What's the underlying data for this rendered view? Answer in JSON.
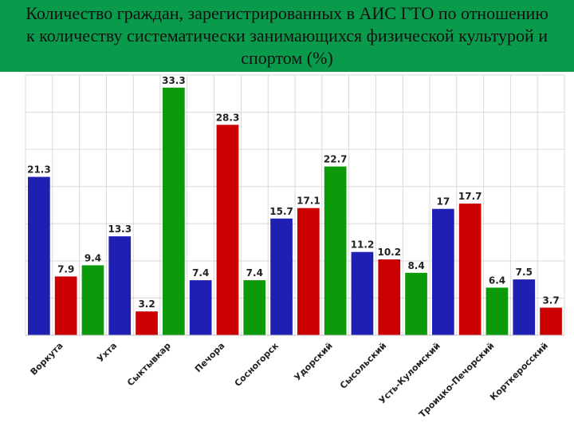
{
  "title": "Количество граждан, зарегистрированных в АИС ГТО по отношению к количеству систематически занимающихся физической культурой и спортом (%)",
  "colors": {
    "blue": "#1f1fb4",
    "red": "#cc0000",
    "green": "#0a9a0a",
    "header": "#0a9a4b",
    "grid": "#d9d9d9"
  },
  "chart_data": {
    "type": "bar",
    "title": "Количество граждан, зарегистрированных в АИС ГТО по отношению к количеству систематически занимающихся физической культурой и спортом (%)",
    "xlabel": "",
    "ylabel": "",
    "ylim": [
      0,
      35
    ],
    "grid": true,
    "categories": [
      "Воркута",
      "Ухта",
      "Сыктывкар",
      "Печора",
      "Сосногорск",
      "Удорский",
      "Сысольский",
      "Усть-Куломский",
      "Троицко-Печорский",
      "Корткеросский"
    ],
    "bars": [
      {
        "value": 21.3,
        "label": "21.3",
        "color": "blue"
      },
      {
        "value": 7.9,
        "label": "7.9",
        "color": "red"
      },
      {
        "value": 9.4,
        "label": "9.4",
        "color": "green"
      },
      {
        "value": 13.3,
        "label": "13.3",
        "color": "blue"
      },
      {
        "value": 3.2,
        "label": "3.2",
        "color": "red"
      },
      {
        "value": 33.3,
        "label": "33.3",
        "color": "green"
      },
      {
        "value": 7.4,
        "label": "7.4",
        "color": "blue"
      },
      {
        "value": 28.3,
        "label": "28.3",
        "color": "red"
      },
      {
        "value": 7.4,
        "label": "7.4",
        "color": "green"
      },
      {
        "value": 15.7,
        "label": "15.7",
        "color": "blue"
      },
      {
        "value": 17.1,
        "label": "17.1",
        "color": "red"
      },
      {
        "value": 22.7,
        "label": "22.7",
        "color": "green"
      },
      {
        "value": 11.2,
        "label": "11.2",
        "color": "blue"
      },
      {
        "value": 10.2,
        "label": "10.2",
        "color": "red"
      },
      {
        "value": 8.4,
        "label": "8.4",
        "color": "green"
      },
      {
        "value": 17,
        "label": "17",
        "color": "blue"
      },
      {
        "value": 17.7,
        "label": "17.7",
        "color": "red"
      },
      {
        "value": 6.4,
        "label": "6.4",
        "color": "green"
      },
      {
        "value": 7.5,
        "label": "7.5",
        "color": "blue"
      },
      {
        "value": 3.7,
        "label": "3.7",
        "color": "red"
      }
    ]
  }
}
